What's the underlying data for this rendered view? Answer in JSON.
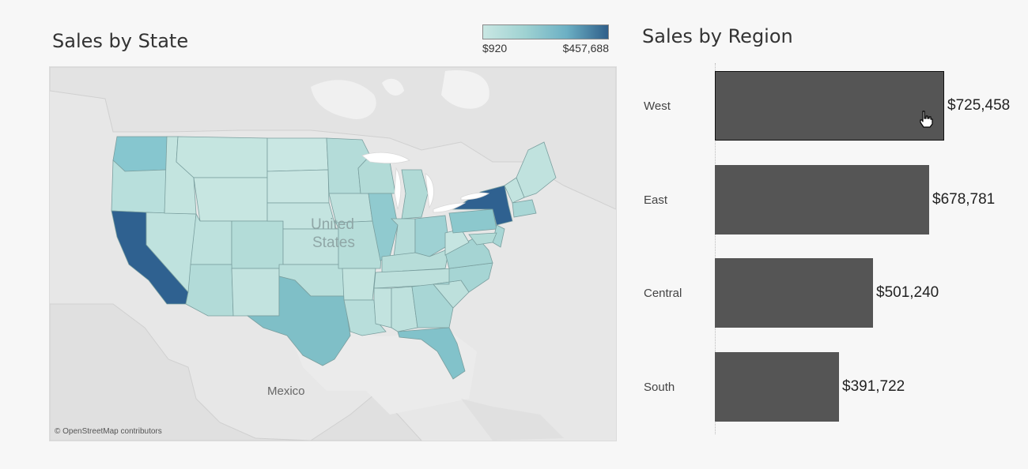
{
  "map": {
    "title": "Sales by State",
    "legend": {
      "min_label": "$920",
      "max_label": "$457,688",
      "colors": [
        "#c9e7e3",
        "#2f5f8a"
      ]
    },
    "labels": {
      "country_us_line1": "United",
      "country_us_line2": "States",
      "mexico": "Mexico"
    },
    "attribution": "© OpenStreetMap contributors"
  },
  "bars": {
    "title": "Sales by Region",
    "bar_color": "#555555"
  },
  "chart_data": {
    "type": "bar",
    "orientation": "horizontal",
    "categories": [
      "West",
      "East",
      "Central",
      "South"
    ],
    "values": [
      725458,
      678781,
      501240,
      391722
    ],
    "value_labels": [
      "$725,458",
      "$678,781",
      "$501,240",
      "$391,722"
    ],
    "title": "Sales by Region",
    "xlim": [
      0,
      725458
    ],
    "selected": "West"
  }
}
